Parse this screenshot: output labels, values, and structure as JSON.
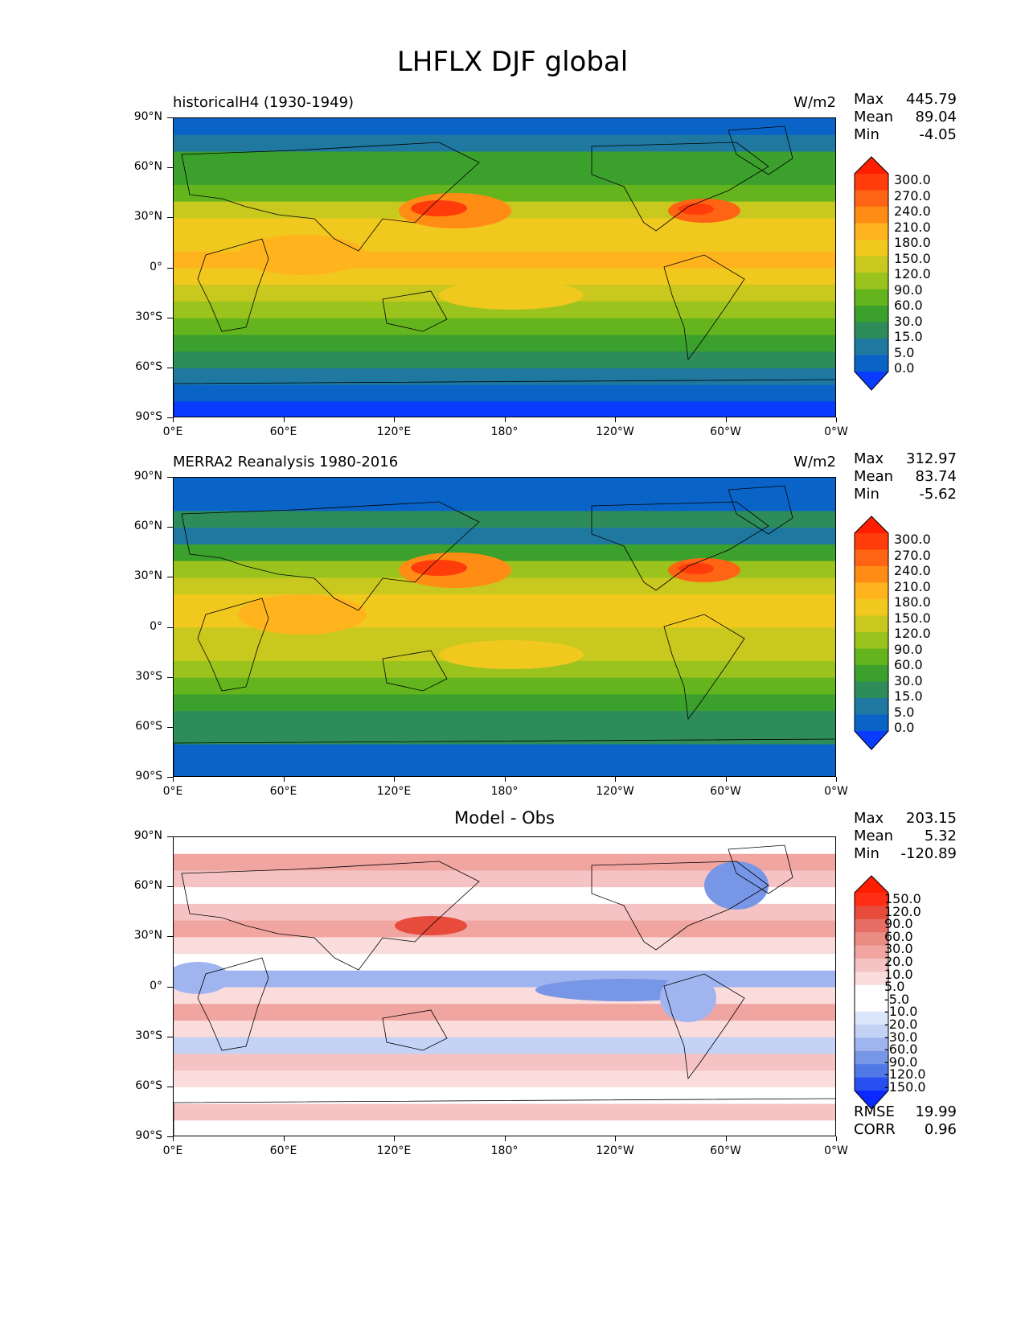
{
  "figure_title": "LHFLX DJF global",
  "lat_labels": [
    "90°N",
    "60°N",
    "30°N",
    "0°",
    "30°S",
    "60°S",
    "90°S"
  ],
  "lon_labels": [
    "0°E",
    "60°E",
    "120°E",
    "180°",
    "120°W",
    "60°W",
    "0°W"
  ],
  "panels": [
    {
      "title": "historicalH4 (1930-1949)",
      "units": "W/m2",
      "stats": {
        "max_label": "Max",
        "max": "445.79",
        "mean_label": "Mean",
        "mean": "89.04",
        "min_label": "Min",
        "min": "-4.05"
      },
      "colorbar_labels": [
        "300.0",
        "270.0",
        "240.0",
        "210.0",
        "180.0",
        "150.0",
        "120.0",
        "90.0",
        "60.0",
        "30.0",
        "15.0",
        "5.0",
        "0.0"
      ]
    },
    {
      "title": "MERRA2 Reanalysis 1980-2016",
      "units": "W/m2",
      "stats": {
        "max_label": "Max",
        "max": "312.97",
        "mean_label": "Mean",
        "mean": "83.74",
        "min_label": "Min",
        "min": "-5.62"
      },
      "colorbar_labels": [
        "300.0",
        "270.0",
        "240.0",
        "210.0",
        "180.0",
        "150.0",
        "120.0",
        "90.0",
        "60.0",
        "30.0",
        "15.0",
        "5.0",
        "0.0"
      ]
    },
    {
      "title": "Model - Obs",
      "units": "",
      "stats": {
        "max_label": "Max",
        "max": "203.15",
        "mean_label": "Mean",
        "mean": "5.32",
        "min_label": "Min",
        "min": "-120.89"
      },
      "colorbar_labels": [
        "150.0",
        "120.0",
        "90.0",
        "60.0",
        "30.0",
        "20.0",
        "10.0",
        "5.0",
        "-5.0",
        "-10.0",
        "-20.0",
        "-30.0",
        "-60.0",
        "-90.0",
        "-120.0",
        "-150.0"
      ],
      "rmse_label": "RMSE",
      "rmse": "19.99",
      "corr_label": "CORR",
      "corr": "0.96"
    }
  ],
  "colors": {
    "flux_scale": [
      "#0a3cff",
      "#0a64c8",
      "#1e78a0",
      "#2d8c5a",
      "#3ca02d",
      "#64b41e",
      "#9bc31e",
      "#c8c81e",
      "#f0c81e",
      "#ffb41e",
      "#ff8c14",
      "#ff6414",
      "#ff3c0a",
      "#ff1e00"
    ],
    "diff_scale": [
      "#0a28ff",
      "#2850f0",
      "#5078e6",
      "#7896e6",
      "#a0b4f0",
      "#c3d2f5",
      "#dce6fa",
      "#ffffff",
      "#ffffff",
      "#fadcdc",
      "#f5c3c3",
      "#f0a5a0",
      "#eb8c82",
      "#e66e64",
      "#e64b3c",
      "#ff2d14",
      "#ff1e00"
    ]
  }
}
